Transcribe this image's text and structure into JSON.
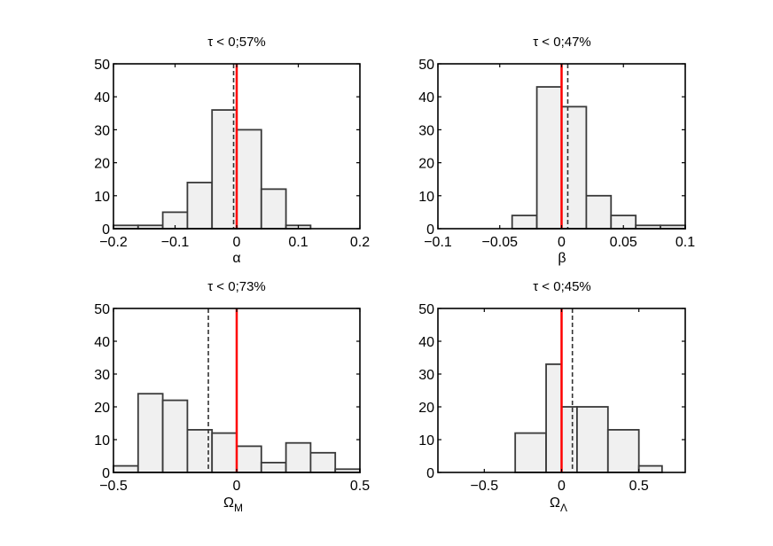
{
  "chart_data": [
    {
      "type": "bar",
      "title": "τ < 0;57%",
      "xlabel": "α",
      "xlabel_sub": "",
      "xlim": [
        -0.2,
        0.2
      ],
      "ylim": [
        0,
        50
      ],
      "xticks": [
        -0.2,
        -0.1,
        0,
        0.1,
        0.2
      ],
      "xtick_labels": [
        "−0.2",
        "−0.1",
        "0",
        "0.1",
        "0.2"
      ],
      "yticks": [
        0,
        10,
        20,
        30,
        40,
        50
      ],
      "ytick_labels": [
        "0",
        "10",
        "20",
        "30",
        "40",
        "50"
      ],
      "bins": [
        {
          "x0": -0.2,
          "x1": -0.16,
          "count": 1
        },
        {
          "x0": -0.16,
          "x1": -0.12,
          "count": 1
        },
        {
          "x0": -0.12,
          "x1": -0.08,
          "count": 5
        },
        {
          "x0": -0.08,
          "x1": -0.04,
          "count": 14
        },
        {
          "x0": -0.04,
          "x1": 0.0,
          "count": 36
        },
        {
          "x0": 0.0,
          "x1": 0.04,
          "count": 30
        },
        {
          "x0": 0.04,
          "x1": 0.08,
          "count": 12
        },
        {
          "x0": 0.08,
          "x1": 0.12,
          "count": 1
        },
        {
          "x0": 0.12,
          "x1": 0.2,
          "count": 0
        }
      ],
      "dashed_line_x": -0.005,
      "red_line_x": 0,
      "grid": false
    },
    {
      "type": "bar",
      "title": "τ < 0;47%",
      "xlabel": "β",
      "xlabel_sub": "",
      "xlim": [
        -0.1,
        0.1
      ],
      "ylim": [
        0,
        50
      ],
      "xticks": [
        -0.1,
        -0.05,
        0,
        0.05,
        0.1
      ],
      "xtick_labels": [
        "−0.1",
        "−0.05",
        "0",
        "0.05",
        "0.1"
      ],
      "yticks": [
        0,
        10,
        20,
        30,
        40,
        50
      ],
      "ytick_labels": [
        "0",
        "10",
        "20",
        "30",
        "40",
        "50"
      ],
      "bins": [
        {
          "x0": -0.1,
          "x1": -0.04,
          "count": 0
        },
        {
          "x0": -0.04,
          "x1": -0.02,
          "count": 4
        },
        {
          "x0": -0.02,
          "x1": 0.0,
          "count": 43
        },
        {
          "x0": 0.0,
          "x1": 0.02,
          "count": 37
        },
        {
          "x0": 0.02,
          "x1": 0.04,
          "count": 10
        },
        {
          "x0": 0.04,
          "x1": 0.06,
          "count": 4
        },
        {
          "x0": 0.06,
          "x1": 0.08,
          "count": 1
        },
        {
          "x0": 0.08,
          "x1": 0.1,
          "count": 1
        }
      ],
      "dashed_line_x": 0.005,
      "red_line_x": 0,
      "grid": false
    },
    {
      "type": "bar",
      "title": "τ < 0;73%",
      "xlabel": "Ω",
      "xlabel_sub": "M",
      "xlim": [
        -0.5,
        0.5
      ],
      "ylim": [
        0,
        50
      ],
      "xticks": [
        -0.5,
        0,
        0.5
      ],
      "xtick_labels": [
        "−0.5",
        "0",
        "0.5"
      ],
      "yticks": [
        0,
        10,
        20,
        30,
        40,
        50
      ],
      "ytick_labels": [
        "0",
        "10",
        "20",
        "30",
        "40",
        "50"
      ],
      "bins": [
        {
          "x0": -0.5,
          "x1": -0.4,
          "count": 2
        },
        {
          "x0": -0.4,
          "x1": -0.3,
          "count": 24
        },
        {
          "x0": -0.3,
          "x1": -0.2,
          "count": 22
        },
        {
          "x0": -0.2,
          "x1": -0.1,
          "count": 13
        },
        {
          "x0": -0.1,
          "x1": 0.0,
          "count": 12
        },
        {
          "x0": 0.0,
          "x1": 0.1,
          "count": 8
        },
        {
          "x0": 0.1,
          "x1": 0.2,
          "count": 3
        },
        {
          "x0": 0.2,
          "x1": 0.3,
          "count": 9
        },
        {
          "x0": 0.3,
          "x1": 0.4,
          "count": 6
        },
        {
          "x0": 0.4,
          "x1": 0.5,
          "count": 1
        }
      ],
      "dashed_line_x": -0.115,
      "red_line_x": 0,
      "grid": false
    },
    {
      "type": "bar",
      "title": "τ < 0;45%",
      "xlabel": "Ω",
      "xlabel_sub": "Λ",
      "xlim": [
        -0.8,
        0.8
      ],
      "ylim": [
        0,
        50
      ],
      "xticks": [
        -0.5,
        0,
        0.5
      ],
      "xtick_labels": [
        "−0.5",
        "0",
        "0.5"
      ],
      "yticks": [
        0,
        10,
        20,
        30,
        40,
        50
      ],
      "ytick_labels": [
        "0",
        "10",
        "20",
        "30",
        "40",
        "50"
      ],
      "bins": [
        {
          "x0": -0.8,
          "x1": -0.3,
          "count": 0
        },
        {
          "x0": -0.3,
          "x1": -0.1,
          "count": 12
        },
        {
          "x0": -0.1,
          "x1": 0.0,
          "count": 33
        },
        {
          "x0": 0.0,
          "x1": 0.1,
          "count": 20
        },
        {
          "x0": 0.1,
          "x1": 0.3,
          "count": 20
        },
        {
          "x0": 0.3,
          "x1": 0.5,
          "count": 13
        },
        {
          "x0": 0.5,
          "x1": 0.65,
          "count": 2
        }
      ],
      "dashed_line_x": 0.07,
      "red_line_x": 0,
      "grid": false
    }
  ],
  "colors": {
    "bar_fill": "#f0f0f0",
    "bar_stroke": "#3a3a3a",
    "axes": "#000000",
    "zero_line": "#ff0000",
    "dashed_line": "#333333"
  }
}
